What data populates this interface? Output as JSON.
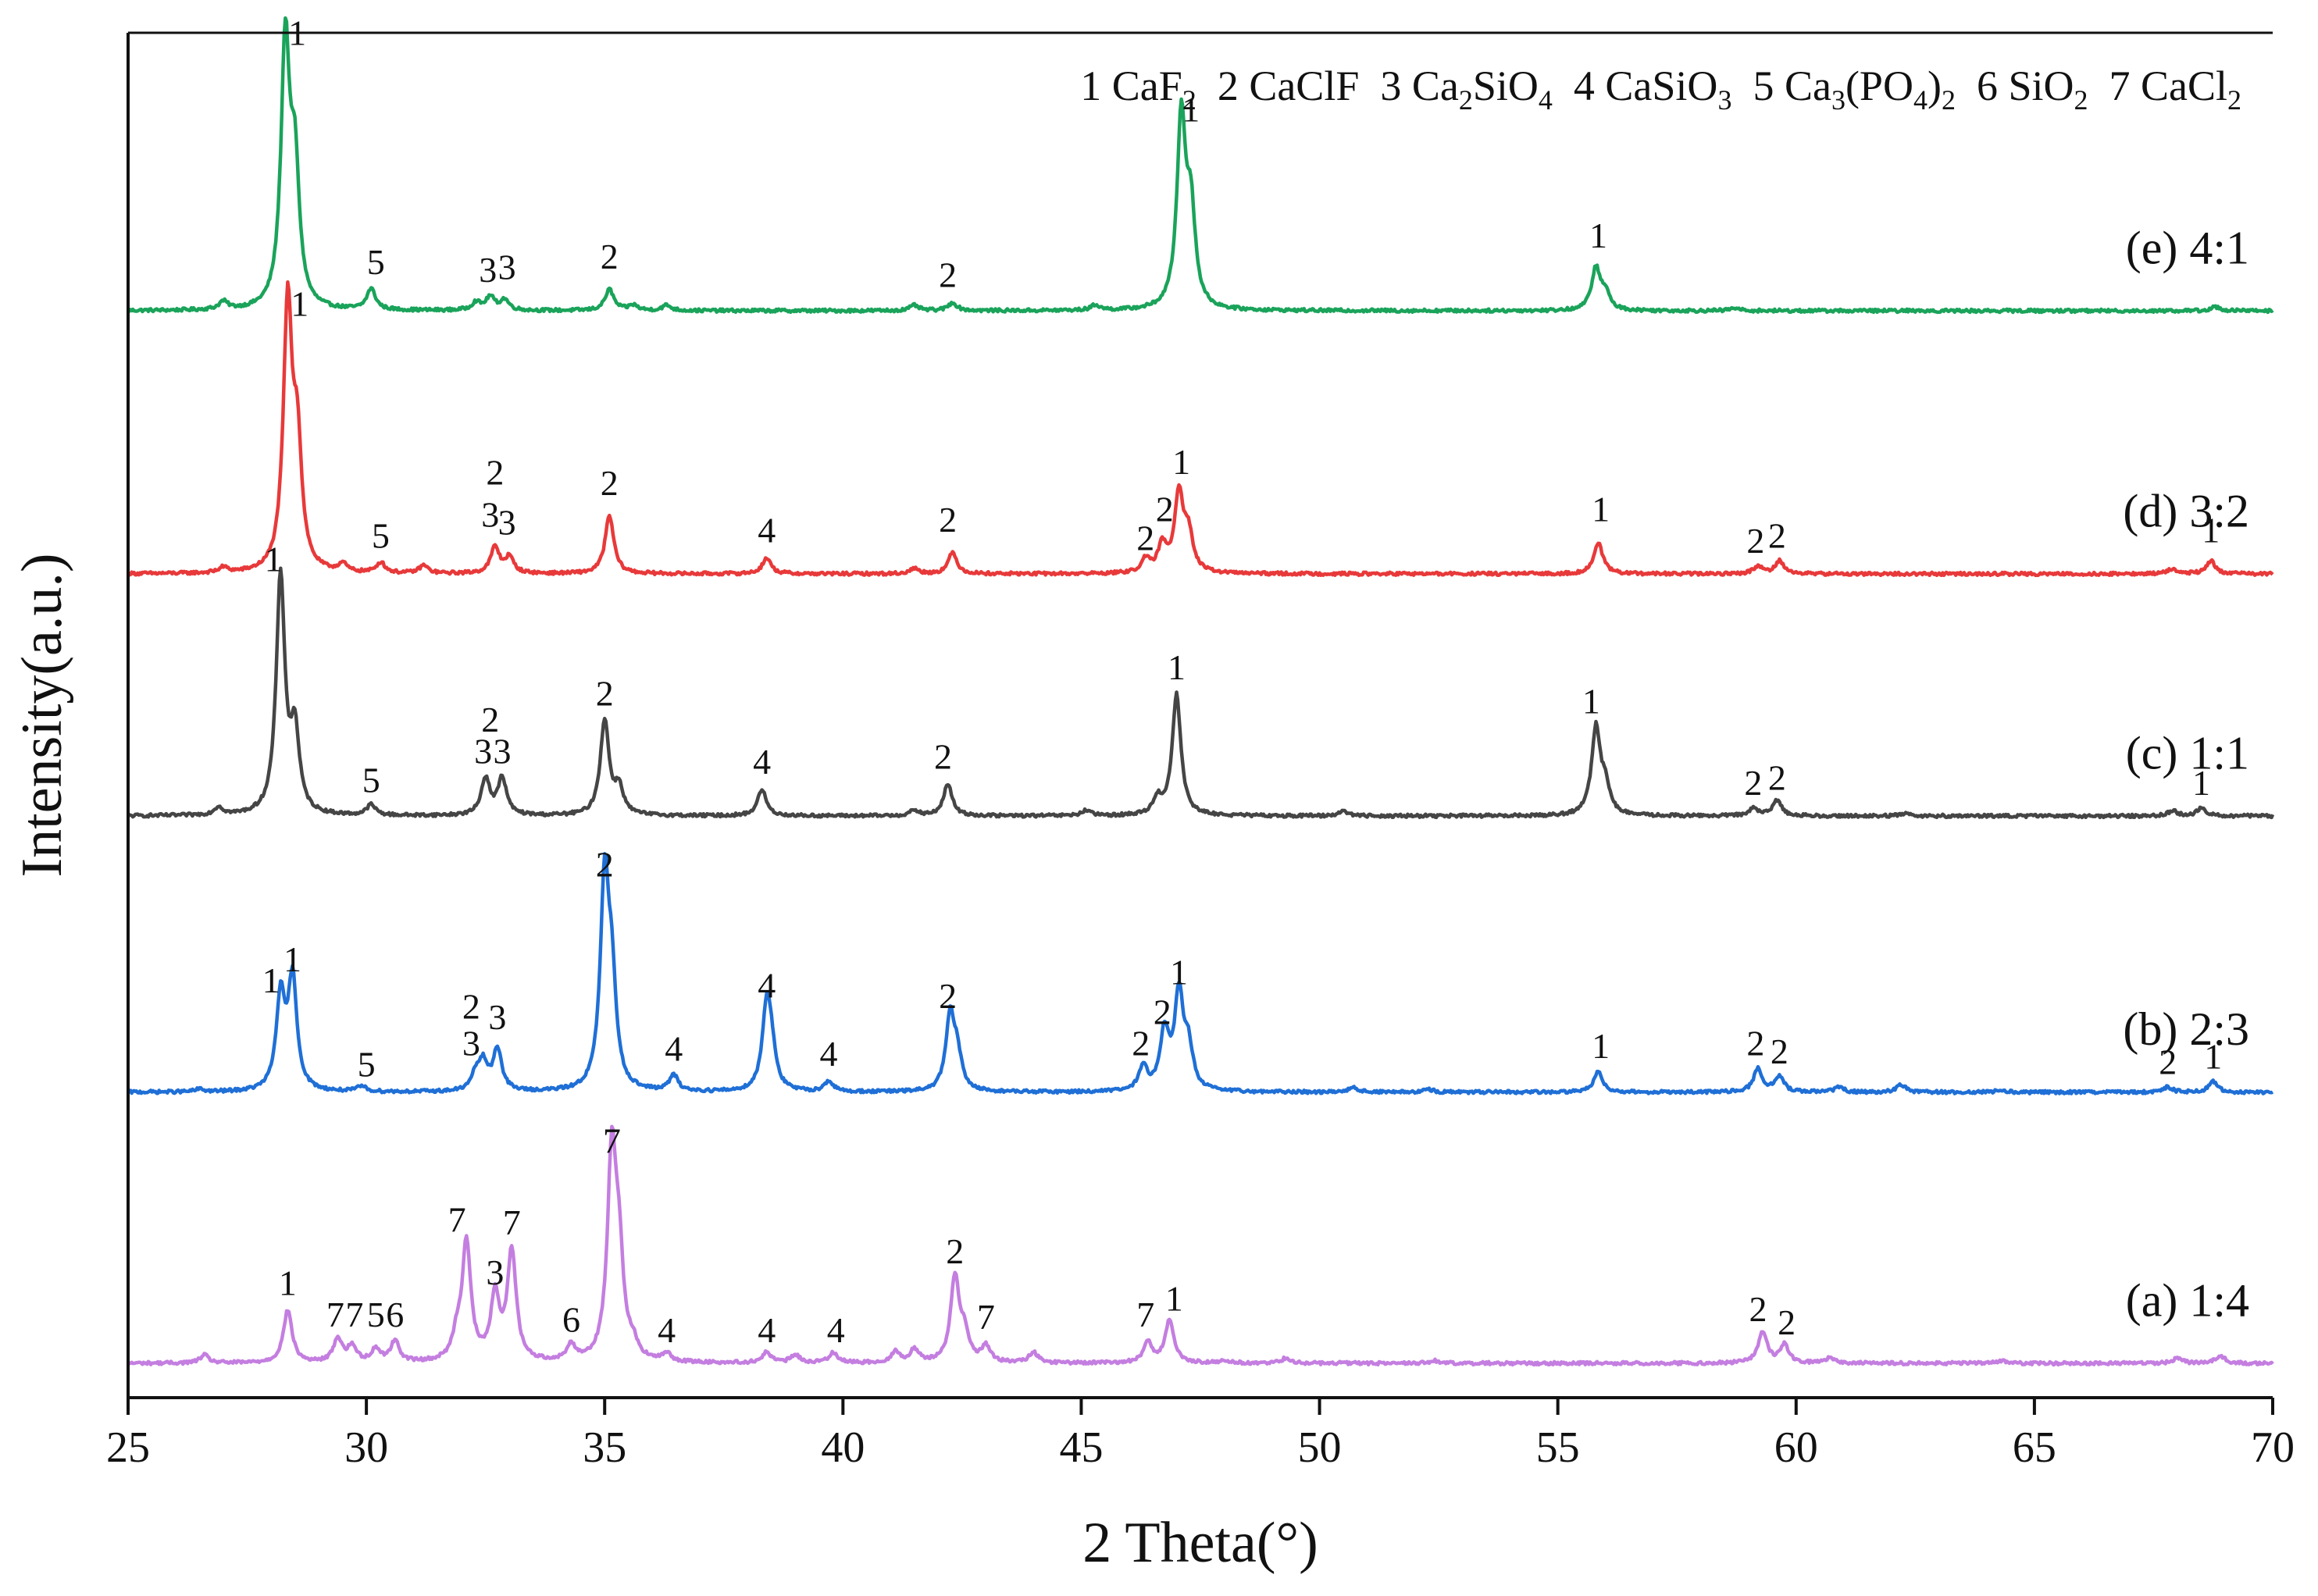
{
  "chart_data": {
    "type": "line",
    "xlabel": "2 Theta(°)",
    "ylabel": "Intensity(a.u.)",
    "xlim": [
      25,
      70
    ],
    "xticks": [
      25,
      30,
      35,
      40,
      45,
      50,
      55,
      60,
      65,
      70
    ],
    "y_ticks_shown": false,
    "legend": {
      "placement": "top",
      "entries": [
        {
          "num": "1",
          "parts": [
            {
              "t": "CaF"
            },
            {
              "t": "2",
              "sub": true
            }
          ]
        },
        {
          "num": "2",
          "parts": [
            {
              "t": "CaClF"
            }
          ]
        },
        {
          "num": "3",
          "parts": [
            {
              "t": "Ca"
            },
            {
              "t": "2",
              "sub": true
            },
            {
              "t": "SiO"
            },
            {
              "t": "4",
              "sub": true
            }
          ]
        },
        {
          "num": "4",
          "parts": [
            {
              "t": "CaSiO"
            },
            {
              "t": "3",
              "sub": true
            }
          ]
        },
        {
          "num": "5",
          "parts": [
            {
              "t": "Ca"
            },
            {
              "t": "3",
              "sub": true
            },
            {
              "t": "(PO"
            },
            {
              "t": "4",
              "sub": true
            },
            {
              "t": ")"
            },
            {
              "t": "2",
              "sub": true
            }
          ]
        },
        {
          "num": "6",
          "parts": [
            {
              "t": "SiO"
            },
            {
              "t": "2",
              "sub": true
            }
          ]
        },
        {
          "num": "7",
          "parts": [
            {
              "t": "CaCl"
            },
            {
              "t": "2",
              "sub": true
            }
          ]
        }
      ]
    },
    "series": [
      {
        "name": "(e) 4:1",
        "color": "#1aa35a",
        "offset": 4,
        "peaks": [
          [
            27.0,
            0.03
          ],
          [
            28.3,
            1.0
          ],
          [
            28.5,
            0.5
          ],
          [
            30.1,
            0.08
          ],
          [
            32.3,
            0.03
          ],
          [
            32.6,
            0.05
          ],
          [
            32.9,
            0.04
          ],
          [
            35.1,
            0.08
          ],
          [
            35.6,
            0.02
          ],
          [
            36.3,
            0.02
          ],
          [
            41.5,
            0.02
          ],
          [
            42.3,
            0.03
          ],
          [
            45.3,
            0.02
          ],
          [
            47.1,
            0.72
          ],
          [
            47.3,
            0.35
          ],
          [
            55.8,
            0.16
          ],
          [
            56.0,
            0.06
          ],
          [
            58.7,
            0.01
          ],
          [
            68.8,
            0.015
          ]
        ],
        "labels": [
          {
            "text": "1",
            "x": 28.55,
            "y": 1.01
          },
          {
            "text": "5",
            "x": 30.2,
            "y": 0.14
          },
          {
            "text": "3",
            "x": 32.55,
            "y": 0.11
          },
          {
            "text": "3",
            "x": 32.95,
            "y": 0.12
          },
          {
            "text": "2",
            "x": 35.1,
            "y": 0.16
          },
          {
            "text": "2",
            "x": 42.2,
            "y": 0.09
          },
          {
            "text": "1",
            "x": 47.3,
            "y": 0.72
          },
          {
            "text": "1",
            "x": 55.85,
            "y": 0.24
          }
        ]
      },
      {
        "name": "(d) 3:2",
        "color": "#e8393a",
        "offset": 3,
        "peaks": [
          [
            27.0,
            0.02
          ],
          [
            28.35,
            1.0
          ],
          [
            28.55,
            0.45
          ],
          [
            29.5,
            0.03
          ],
          [
            30.3,
            0.04
          ],
          [
            31.2,
            0.03
          ],
          [
            32.7,
            0.1
          ],
          [
            33.0,
            0.06
          ],
          [
            35.1,
            0.22
          ],
          [
            38.4,
            0.06
          ],
          [
            41.5,
            0.02
          ],
          [
            42.3,
            0.08
          ],
          [
            46.35,
            0.05
          ],
          [
            46.7,
            0.1
          ],
          [
            47.05,
            0.3
          ],
          [
            47.25,
            0.14
          ],
          [
            55.85,
            0.12
          ],
          [
            59.2,
            0.03
          ],
          [
            59.65,
            0.05
          ],
          [
            67.9,
            0.02
          ],
          [
            68.7,
            0.05
          ]
        ],
        "labels": [
          {
            "text": "1",
            "x": 28.6,
            "y": 0.98
          },
          {
            "text": "5",
            "x": 30.3,
            "y": 0.1
          },
          {
            "text": "2",
            "x": 32.7,
            "y": 0.34
          },
          {
            "text": "3",
            "x": 32.6,
            "y": 0.18
          },
          {
            "text": "3",
            "x": 32.95,
            "y": 0.15
          },
          {
            "text": "2",
            "x": 35.1,
            "y": 0.3
          },
          {
            "text": "4",
            "x": 38.4,
            "y": 0.12
          },
          {
            "text": "2",
            "x": 42.2,
            "y": 0.16
          },
          {
            "text": "2",
            "x": 46.35,
            "y": 0.09
          },
          {
            "text": "2",
            "x": 46.75,
            "y": 0.2
          },
          {
            "text": "1",
            "x": 47.1,
            "y": 0.38
          },
          {
            "text": "1",
            "x": 55.9,
            "y": 0.2
          },
          {
            "text": "2",
            "x": 59.15,
            "y": 0.08
          },
          {
            "text": "2",
            "x": 59.6,
            "y": 0.1
          },
          {
            "text": "1",
            "x": 68.7,
            "y": 0.12
          }
        ]
      },
      {
        "name": "(c) 1:1",
        "color": "#454545",
        "offset": 2.08,
        "peaks": [
          [
            26.9,
            0.03
          ],
          [
            28.2,
            0.9
          ],
          [
            28.5,
            0.3
          ],
          [
            30.1,
            0.04
          ],
          [
            32.5,
            0.14
          ],
          [
            32.85,
            0.14
          ],
          [
            35.0,
            0.36
          ],
          [
            35.3,
            0.1
          ],
          [
            38.3,
            0.1
          ],
          [
            41.5,
            0.02
          ],
          [
            42.2,
            0.12
          ],
          [
            45.1,
            0.02
          ],
          [
            46.6,
            0.06
          ],
          [
            47.0,
            0.46
          ],
          [
            50.5,
            0.02
          ],
          [
            55.8,
            0.33
          ],
          [
            56.0,
            0.1
          ],
          [
            59.1,
            0.03
          ],
          [
            59.6,
            0.06
          ],
          [
            62.3,
            0.01
          ],
          [
            67.9,
            0.02
          ],
          [
            68.5,
            0.03
          ]
        ],
        "labels": [
          {
            "text": "1",
            "x": 28.05,
            "y": 0.93
          },
          {
            "text": "5",
            "x": 30.1,
            "y": 0.09
          },
          {
            "text": "2",
            "x": 32.6,
            "y": 0.32
          },
          {
            "text": "3",
            "x": 32.45,
            "y": 0.2
          },
          {
            "text": "3",
            "x": 32.85,
            "y": 0.2
          },
          {
            "text": "2",
            "x": 35.0,
            "y": 0.42
          },
          {
            "text": "4",
            "x": 38.3,
            "y": 0.16
          },
          {
            "text": "2",
            "x": 42.1,
            "y": 0.18
          },
          {
            "text": "1",
            "x": 47.0,
            "y": 0.52
          },
          {
            "text": "1",
            "x": 55.7,
            "y": 0.39
          },
          {
            "text": "2",
            "x": 59.1,
            "y": 0.08
          },
          {
            "text": "2",
            "x": 59.6,
            "y": 0.1
          },
          {
            "text": "1",
            "x": 68.5,
            "y": 0.08
          }
        ]
      },
      {
        "name": "(b) 2:3",
        "color": "#1f6fd6",
        "offset": 1.03,
        "peaks": [
          [
            26.5,
            0.01
          ],
          [
            28.2,
            0.35
          ],
          [
            28.45,
            0.42
          ],
          [
            29.9,
            0.02
          ],
          [
            32.3,
            0.06
          ],
          [
            32.45,
            0.1
          ],
          [
            32.75,
            0.16
          ],
          [
            35.0,
            0.78
          ],
          [
            35.15,
            0.35
          ],
          [
            36.45,
            0.06
          ],
          [
            38.4,
            0.31
          ],
          [
            38.5,
            0.12
          ],
          [
            39.7,
            0.04
          ],
          [
            42.25,
            0.28
          ],
          [
            42.4,
            0.12
          ],
          [
            46.3,
            0.09
          ],
          [
            46.75,
            0.22
          ],
          [
            47.05,
            0.36
          ],
          [
            47.25,
            0.15
          ],
          [
            50.7,
            0.02
          ],
          [
            52.3,
            0.01
          ],
          [
            55.85,
            0.08
          ],
          [
            59.2,
            0.09
          ],
          [
            59.65,
            0.06
          ],
          [
            60.9,
            0.02
          ],
          [
            62.2,
            0.03
          ],
          [
            64.3,
            0.01
          ],
          [
            67.8,
            0.02
          ],
          [
            68.75,
            0.04
          ]
        ],
        "labels": [
          {
            "text": "1",
            "x": 28.0,
            "y": 0.38
          },
          {
            "text": "1",
            "x": 28.45,
            "y": 0.46
          },
          {
            "text": "5",
            "x": 30.0,
            "y": 0.06
          },
          {
            "text": "2",
            "x": 32.2,
            "y": 0.28
          },
          {
            "text": "3",
            "x": 32.75,
            "y": 0.24
          },
          {
            "text": "3",
            "x": 32.2,
            "y": 0.14
          },
          {
            "text": "2",
            "x": 35.0,
            "y": 0.82
          },
          {
            "text": "4",
            "x": 36.45,
            "y": 0.12
          },
          {
            "text": "4",
            "x": 38.4,
            "y": 0.36
          },
          {
            "text": "4",
            "x": 39.7,
            "y": 0.1
          },
          {
            "text": "2",
            "x": 42.2,
            "y": 0.32
          },
          {
            "text": "2",
            "x": 46.25,
            "y": 0.14
          },
          {
            "text": "2",
            "x": 46.7,
            "y": 0.26
          },
          {
            "text": "1",
            "x": 47.05,
            "y": 0.41
          },
          {
            "text": "1",
            "x": 55.9,
            "y": 0.13
          },
          {
            "text": "2",
            "x": 59.15,
            "y": 0.14
          },
          {
            "text": "2",
            "x": 59.65,
            "y": 0.11
          },
          {
            "text": "2",
            "x": 67.8,
            "y": 0.07
          },
          {
            "text": "1",
            "x": 68.75,
            "y": 0.09
          }
        ]
      },
      {
        "name": "(a) 1:4",
        "color": "#c47ee0",
        "offset": 0,
        "peaks": [
          [
            26.6,
            0.03
          ],
          [
            28.35,
            0.2
          ],
          [
            29.4,
            0.09
          ],
          [
            29.7,
            0.06
          ],
          [
            30.2,
            0.05
          ],
          [
            30.6,
            0.08
          ],
          [
            31.9,
            0.08
          ],
          [
            32.1,
            0.45
          ],
          [
            32.7,
            0.24
          ],
          [
            33.05,
            0.42
          ],
          [
            34.3,
            0.06
          ],
          [
            35.15,
            0.77
          ],
          [
            35.3,
            0.35
          ],
          [
            35.6,
            0.05
          ],
          [
            36.3,
            0.03
          ],
          [
            38.4,
            0.04
          ],
          [
            39.0,
            0.03
          ],
          [
            39.8,
            0.04
          ],
          [
            41.1,
            0.04
          ],
          [
            41.5,
            0.05
          ],
          [
            42.35,
            0.32
          ],
          [
            42.55,
            0.1
          ],
          [
            43.0,
            0.06
          ],
          [
            44.0,
            0.04
          ],
          [
            46.4,
            0.08
          ],
          [
            46.85,
            0.16
          ],
          [
            48.0,
            0.01
          ],
          [
            49.3,
            0.02
          ],
          [
            52.4,
            0.01
          ],
          [
            59.3,
            0.12
          ],
          [
            59.75,
            0.07
          ],
          [
            60.7,
            0.02
          ],
          [
            64.3,
            0.01
          ],
          [
            68.0,
            0.02
          ],
          [
            68.9,
            0.03
          ]
        ],
        "labels": [
          {
            "text": "1",
            "x": 28.35,
            "y": 0.26
          },
          {
            "text": "7",
            "x": 29.35,
            "y": 0.14
          },
          {
            "text": "7",
            "x": 29.75,
            "y": 0.14
          },
          {
            "text": "5",
            "x": 30.2,
            "y": 0.14
          },
          {
            "text": "6",
            "x": 30.6,
            "y": 0.14
          },
          {
            "text": "7",
            "x": 31.9,
            "y": 0.5
          },
          {
            "text": "7",
            "x": 33.05,
            "y": 0.49
          },
          {
            "text": "3",
            "x": 32.7,
            "y": 0.3
          },
          {
            "text": "6",
            "x": 34.3,
            "y": 0.12
          },
          {
            "text": "7",
            "x": 35.15,
            "y": 0.8
          },
          {
            "text": "4",
            "x": 36.3,
            "y": 0.08
          },
          {
            "text": "4",
            "x": 38.4,
            "y": 0.08
          },
          {
            "text": "4",
            "x": 39.85,
            "y": 0.08
          },
          {
            "text": "2",
            "x": 42.35,
            "y": 0.38
          },
          {
            "text": "7",
            "x": 43.0,
            "y": 0.13
          },
          {
            "text": "7",
            "x": 46.35,
            "y": 0.14
          },
          {
            "text": "1",
            "x": 46.95,
            "y": 0.2
          },
          {
            "text": "2",
            "x": 59.2,
            "y": 0.16
          },
          {
            "text": "2",
            "x": 59.8,
            "y": 0.11
          }
        ]
      }
    ]
  }
}
